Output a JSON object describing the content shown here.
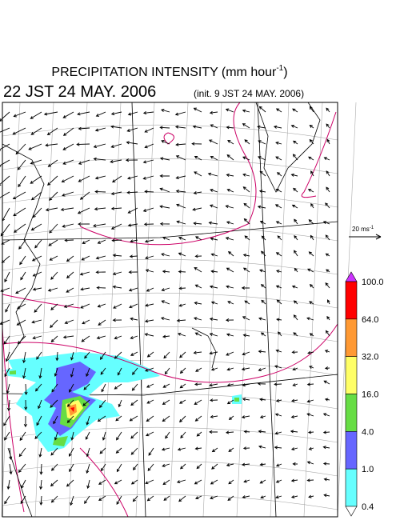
{
  "title": {
    "main": "PRECIPITATION INTENSITY (mm hour",
    "exponent": "-1",
    "close": ")"
  },
  "valid_time": "22 JST 24 MAY. 2006",
  "init_time": "(init. 9 JST 24 MAY. 2006)",
  "vector_legend": {
    "main": "20 ms",
    "exponent": "-1"
  },
  "colorbar": {
    "levels": [
      "100.0",
      "64.0",
      "32.0",
      "16.0",
      "4.0",
      "1.0",
      "0.4"
    ],
    "colors": [
      "#cc33ff",
      "#ff0000",
      "#ff9933",
      "#ffff66",
      "#66dd44",
      "#6666ff",
      "#66ffff",
      "#ffffff"
    ]
  }
}
